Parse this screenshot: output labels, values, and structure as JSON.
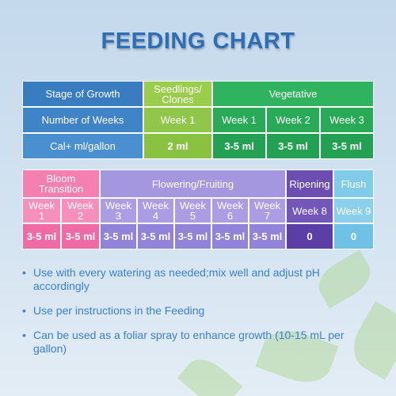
{
  "title": "FEEDING CHART",
  "table1": {
    "rows": [
      [
        "Stage of Growth",
        "Seedlings/ Clones",
        "Vegetative"
      ],
      [
        "Number of Weeks",
        "Week 1",
        "Week 1",
        "Week 2",
        "Week 3"
      ],
      [
        "Cal+   ml/gallon",
        "2 ml",
        "3-5 ml",
        "3-5 ml",
        "3-5 ml"
      ]
    ]
  },
  "table2": {
    "rows": [
      [
        "Bloom Transition",
        "Flowering/Fruiting",
        "Ripening",
        "Flush"
      ],
      [
        "Week 1",
        "Week 2",
        "Week 3",
        "Week 4",
        "Week 5",
        "Week 6",
        "Week 7",
        "Week 8",
        "Week 9"
      ],
      [
        "3-5 ml",
        "3-5 ml",
        "3-5 ml",
        "3-5 ml",
        "3-5 ml",
        "3-5 ml",
        "3-5 ml",
        "0",
        "0"
      ]
    ]
  },
  "notes": [
    "Use with every watering as needed;mix well and adjust pH accordingly",
    "Use per instructions in the Feeding",
    "Can be used as a foliar spray to enhance growth (10-15 mL per gallon)"
  ]
}
